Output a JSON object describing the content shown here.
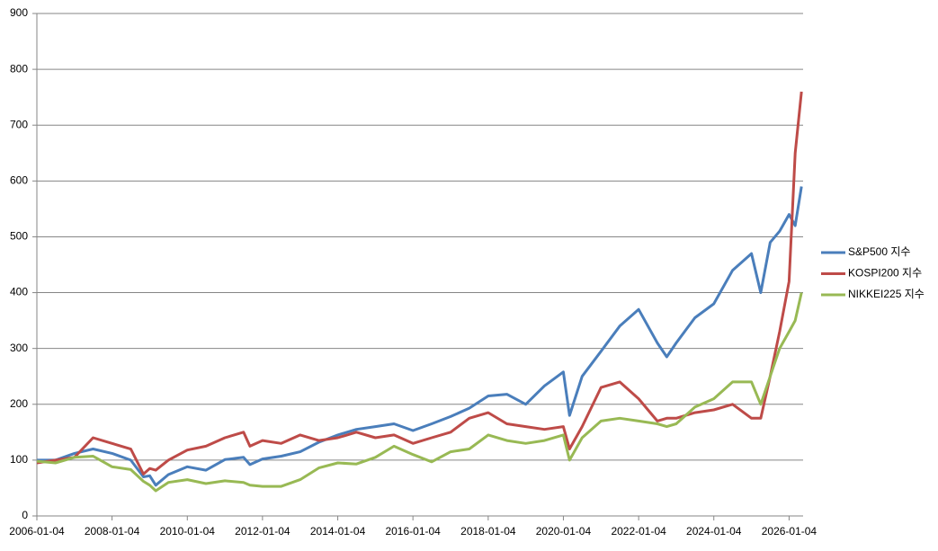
{
  "chart_data": {
    "type": "line",
    "x": [
      "2006-01-04",
      "2006-07-04",
      "2007-01-04",
      "2007-07-04",
      "2008-01-04",
      "2008-07-04",
      "2008-11-04",
      "2009-01-04",
      "2009-03-04",
      "2009-07-04",
      "2010-01-04",
      "2010-07-04",
      "2011-01-04",
      "2011-07-04",
      "2011-09-04",
      "2012-01-04",
      "2012-07-04",
      "2013-01-04",
      "2013-07-04",
      "2014-01-04",
      "2014-07-04",
      "2015-01-04",
      "2015-07-04",
      "2016-01-04",
      "2016-07-04",
      "2017-01-04",
      "2017-07-04",
      "2018-01-04",
      "2018-07-04",
      "2019-01-04",
      "2019-07-04",
      "2020-01-04",
      "2020-03-04",
      "2020-07-04",
      "2021-01-04",
      "2021-07-04",
      "2022-01-04",
      "2022-07-04",
      "2022-10-04",
      "2023-01-04",
      "2023-07-04",
      "2024-01-04",
      "2024-07-04",
      "2025-01-04",
      "2025-04-04",
      "2025-07-04",
      "2025-10-04",
      "2026-01-04",
      "2026-03-04",
      "2026-05-04"
    ],
    "series": [
      {
        "name": "S&P500 지수",
        "color": "#4a7ebb",
        "values": [
          100,
          100,
          112,
          120,
          112,
          100,
          70,
          72,
          55,
          74,
          88,
          82,
          101,
          105,
          92,
          102,
          107,
          115,
          132,
          145,
          155,
          160,
          165,
          153,
          165,
          178,
          193,
          215,
          218,
          200,
          233,
          258,
          180,
          250,
          295,
          340,
          370,
          310,
          285,
          310,
          355,
          380,
          440,
          470,
          400,
          490,
          510,
          540,
          520,
          590
        ]
      },
      {
        "name": "KOSPI200 지수",
        "color": "#be4b48",
        "values": [
          95,
          100,
          105,
          140,
          130,
          120,
          75,
          85,
          82,
          100,
          118,
          125,
          140,
          150,
          125,
          135,
          130,
          145,
          135,
          140,
          150,
          140,
          145,
          130,
          140,
          150,
          175,
          185,
          165,
          160,
          155,
          160,
          120,
          160,
          230,
          240,
          210,
          170,
          175,
          175,
          185,
          190,
          200,
          175,
          175,
          250,
          330,
          420,
          650,
          760
        ]
      },
      {
        "name": "NIKKEI225 지수",
        "color": "#98b954",
        "values": [
          98,
          95,
          105,
          107,
          88,
          83,
          62,
          55,
          45,
          60,
          65,
          58,
          63,
          60,
          55,
          53,
          53,
          65,
          86,
          95,
          93,
          105,
          125,
          110,
          97,
          115,
          120,
          145,
          135,
          130,
          135,
          145,
          100,
          140,
          170,
          175,
          170,
          165,
          160,
          165,
          195,
          210,
          240,
          240,
          200,
          250,
          300,
          330,
          350,
          400
        ]
      }
    ],
    "xlim": [
      "2006-01-04",
      "2026-05-20"
    ],
    "xticks": [
      "2006-01-04",
      "2008-01-04",
      "2010-01-04",
      "2012-01-04",
      "2014-01-04",
      "2016-01-04",
      "2018-01-04",
      "2020-01-04",
      "2022-01-04",
      "2024-01-04",
      "2026-01-04"
    ],
    "ylim": [
      0,
      900
    ],
    "yticks": [
      0,
      100,
      200,
      300,
      400,
      500,
      600,
      700,
      800,
      900
    ],
    "grid": true,
    "legend": "right"
  }
}
